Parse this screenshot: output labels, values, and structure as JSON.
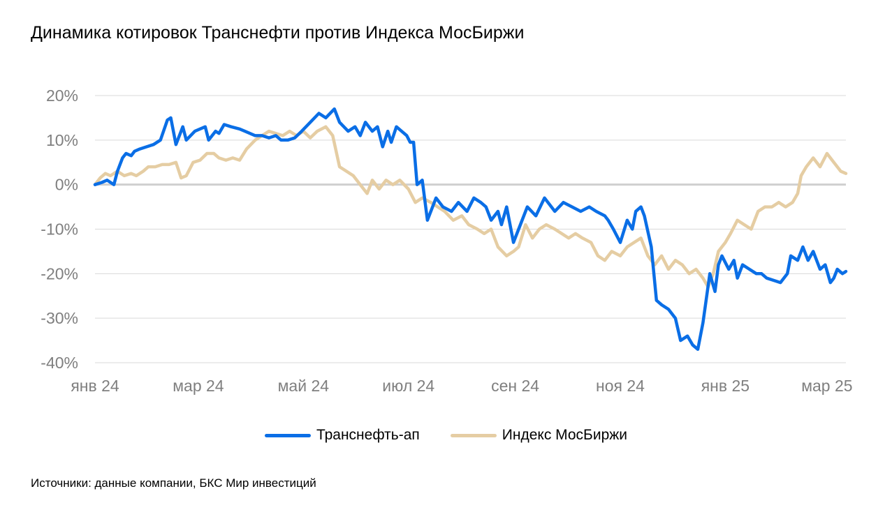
{
  "title": "Динамика котировок Транснефти против Индекса МосБиржи",
  "source": "Источники: данные компании, БКС Мир инвестиций",
  "colors": {
    "series1": "#0a6ee6",
    "series2": "#e5cda3",
    "grid": "#d9d9d9",
    "zero": "#cfcfcf",
    "tick": "#7f7f7f"
  },
  "chart_data": {
    "type": "line",
    "y_unit": "%",
    "ylim": [
      -40,
      20
    ],
    "yticks": [
      "20%",
      "10%",
      "0%",
      "-10%",
      "-20%",
      "-30%",
      "-40%"
    ],
    "ytick_values": [
      20,
      10,
      0,
      -10,
      -20,
      -30,
      -40
    ],
    "xlim": [
      "2024-01-01",
      "2025-03-12"
    ],
    "xticks": [
      "янв 24",
      "мар 24",
      "май 24",
      "июл 24",
      "сен 24",
      "ноя 24",
      "янв 25",
      "мар 25"
    ],
    "xtick_dates": [
      "2024-01-01",
      "2024-03-01",
      "2024-05-01",
      "2024-07-01",
      "2024-09-01",
      "2024-11-01",
      "2025-01-01",
      "2025-03-01"
    ],
    "grid": true,
    "legend_position": "bottom",
    "series": [
      {
        "name": "Транснефть-ап",
        "x": [
          "2024-01-01",
          "2024-01-05",
          "2024-01-08",
          "2024-01-12",
          "2024-01-14",
          "2024-01-17",
          "2024-01-19",
          "2024-01-22",
          "2024-01-24",
          "2024-01-27",
          "2024-01-31",
          "2024-02-04",
          "2024-02-08",
          "2024-02-12",
          "2024-02-14",
          "2024-02-17",
          "2024-02-21",
          "2024-02-23",
          "2024-02-28",
          "2024-03-05",
          "2024-03-07",
          "2024-03-11",
          "2024-03-13",
          "2024-03-16",
          "2024-03-20",
          "2024-03-25",
          "2024-03-28",
          "2024-04-03",
          "2024-04-07",
          "2024-04-11",
          "2024-04-15",
          "2024-04-18",
          "2024-04-22",
          "2024-04-26",
          "2024-04-30",
          "2024-05-05",
          "2024-05-10",
          "2024-05-14",
          "2024-05-19",
          "2024-05-22",
          "2024-05-27",
          "2024-05-31",
          "2024-06-03",
          "2024-06-06",
          "2024-06-10",
          "2024-06-13",
          "2024-06-16",
          "2024-06-19",
          "2024-06-21",
          "2024-06-24",
          "2024-06-27",
          "2024-06-30",
          "2024-07-02",
          "2024-07-04",
          "2024-07-06",
          "2024-07-09",
          "2024-07-12",
          "2024-07-17",
          "2024-07-21",
          "2024-07-26",
          "2024-07-30",
          "2024-08-04",
          "2024-08-08",
          "2024-08-12",
          "2024-08-15",
          "2024-08-18",
          "2024-08-22",
          "2024-08-24",
          "2024-08-27",
          "2024-08-31",
          "2024-09-03",
          "2024-09-08",
          "2024-09-13",
          "2024-09-18",
          "2024-09-24",
          "2024-09-29",
          "2024-10-04",
          "2024-10-09",
          "2024-10-14",
          "2024-10-18",
          "2024-10-23",
          "2024-10-25",
          "2024-10-28",
          "2024-11-01",
          "2024-11-05",
          "2024-11-08",
          "2024-11-10",
          "2024-11-13",
          "2024-11-15",
          "2024-11-19",
          "2024-11-22",
          "2024-11-25",
          "2024-11-29",
          "2024-12-03",
          "2024-12-06",
          "2024-12-10",
          "2024-12-13",
          "2024-12-16",
          "2024-12-19",
          "2024-12-23",
          "2024-12-26",
          "2024-12-28",
          "2024-12-30",
          "2025-01-03",
          "2025-01-06",
          "2025-01-08",
          "2025-01-11",
          "2025-01-15",
          "2025-01-19",
          "2025-01-22",
          "2025-01-25",
          "2025-01-29",
          "2025-02-02",
          "2025-02-06",
          "2025-02-08",
          "2025-02-12",
          "2025-02-15",
          "2025-02-18",
          "2025-02-21",
          "2025-02-25",
          "2025-02-28",
          "2025-03-03",
          "2025-03-05",
          "2025-03-07",
          "2025-03-10",
          "2025-03-12"
        ],
        "y": [
          0,
          0.5,
          1,
          0,
          3,
          6,
          7,
          6.5,
          7.5,
          8,
          8.5,
          9,
          10,
          14.5,
          15,
          9,
          13,
          10,
          12,
          13,
          10,
          12,
          11.5,
          13.5,
          13,
          12.5,
          12,
          11,
          11,
          10.5,
          11,
          10,
          10,
          10.5,
          12,
          14,
          16,
          15,
          17,
          14,
          12,
          13,
          11,
          14,
          12,
          13,
          8.5,
          12,
          9.5,
          13,
          12,
          11,
          9.5,
          9.5,
          0,
          1,
          -8,
          -3,
          -5,
          -6,
          -4,
          -6,
          -3,
          -4,
          -5,
          -8,
          -6,
          -9,
          -5,
          -13,
          -10,
          -5,
          -7,
          -3,
          -6,
          -4,
          -5,
          -6,
          -5,
          -6,
          -7,
          -8,
          -10,
          -13,
          -8,
          -10,
          -6,
          -5,
          -7,
          -14,
          -26,
          -27,
          -28,
          -30,
          -35,
          -34,
          -36,
          -37,
          -31,
          -20,
          -24,
          -18,
          -16,
          -19,
          -17,
          -21,
          -18,
          -19,
          -20,
          -20,
          -21,
          -21.5,
          -22,
          -20,
          -16,
          -17,
          -14,
          -17,
          -15,
          -19,
          -18,
          -22,
          -21,
          -19,
          -20,
          -19.5
        ]
      },
      {
        "name": "Индекс МосБиржи",
        "x": [
          "2024-01-01",
          "2024-01-04",
          "2024-01-07",
          "2024-01-10",
          "2024-01-14",
          "2024-01-18",
          "2024-01-22",
          "2024-01-25",
          "2024-01-29",
          "2024-02-01",
          "2024-02-05",
          "2024-02-09",
          "2024-02-13",
          "2024-02-17",
          "2024-02-20",
          "2024-02-23",
          "2024-02-27",
          "2024-03-02",
          "2024-03-06",
          "2024-03-10",
          "2024-03-13",
          "2024-03-17",
          "2024-03-21",
          "2024-03-25",
          "2024-03-29",
          "2024-04-03",
          "2024-04-07",
          "2024-04-11",
          "2024-04-15",
          "2024-04-19",
          "2024-04-23",
          "2024-04-27",
          "2024-05-01",
          "2024-05-05",
          "2024-05-09",
          "2024-05-14",
          "2024-05-18",
          "2024-05-22",
          "2024-05-26",
          "2024-05-30",
          "2024-06-03",
          "2024-06-07",
          "2024-06-10",
          "2024-06-14",
          "2024-06-18",
          "2024-06-22",
          "2024-06-26",
          "2024-07-01",
          "2024-07-05",
          "2024-07-09",
          "2024-07-14",
          "2024-07-18",
          "2024-07-22",
          "2024-07-27",
          "2024-08-01",
          "2024-08-05",
          "2024-08-10",
          "2024-08-14",
          "2024-08-18",
          "2024-08-22",
          "2024-08-27",
          "2024-08-31",
          "2024-09-03",
          "2024-09-07",
          "2024-09-11",
          "2024-09-15",
          "2024-09-19",
          "2024-09-24",
          "2024-09-28",
          "2024-10-02",
          "2024-10-06",
          "2024-10-10",
          "2024-10-15",
          "2024-10-19",
          "2024-10-23",
          "2024-10-27",
          "2024-11-01",
          "2024-11-05",
          "2024-11-09",
          "2024-11-13",
          "2024-11-17",
          "2024-11-21",
          "2024-11-25",
          "2024-11-29",
          "2024-12-03",
          "2024-12-07",
          "2024-12-11",
          "2024-12-15",
          "2024-12-19",
          "2024-12-22",
          "2024-12-25",
          "2024-12-28",
          "2025-01-01",
          "2025-01-04",
          "2025-01-08",
          "2025-01-12",
          "2025-01-16",
          "2025-01-20",
          "2025-01-24",
          "2025-01-28",
          "2025-02-01",
          "2025-02-05",
          "2025-02-09",
          "2025-02-12",
          "2025-02-14",
          "2025-02-17",
          "2025-02-21",
          "2025-02-25",
          "2025-03-01",
          "2025-03-05",
          "2025-03-09",
          "2025-03-12"
        ],
        "y": [
          0,
          1.5,
          2.5,
          2,
          3,
          2,
          2.5,
          2,
          3,
          4,
          4,
          4.5,
          4.5,
          5,
          1.5,
          2,
          5,
          5.5,
          7,
          7,
          6,
          5.5,
          6,
          5.5,
          8,
          10,
          11,
          12,
          11.5,
          11,
          12,
          11,
          12,
          10.5,
          12,
          13,
          11,
          4,
          3,
          2,
          0,
          -2,
          1,
          -1,
          1,
          0,
          1,
          -1,
          -4,
          -3,
          -4,
          -5,
          -6,
          -8,
          -7,
          -9,
          -10,
          -11,
          -10,
          -14,
          -16,
          -15,
          -14,
          -9,
          -12,
          -10,
          -9,
          -10,
          -11,
          -12,
          -11,
          -12,
          -13,
          -16,
          -17,
          -15,
          -16,
          -14,
          -13,
          -12,
          -16,
          -18,
          -16,
          -19,
          -17,
          -18,
          -20,
          -19,
          -21,
          -23,
          -20,
          -15,
          -13,
          -11,
          -8,
          -9,
          -10,
          -6,
          -5,
          -5,
          -4,
          -5,
          -4,
          -2,
          2,
          4,
          6,
          4,
          7,
          5,
          3,
          2.5
        ]
      }
    ]
  }
}
